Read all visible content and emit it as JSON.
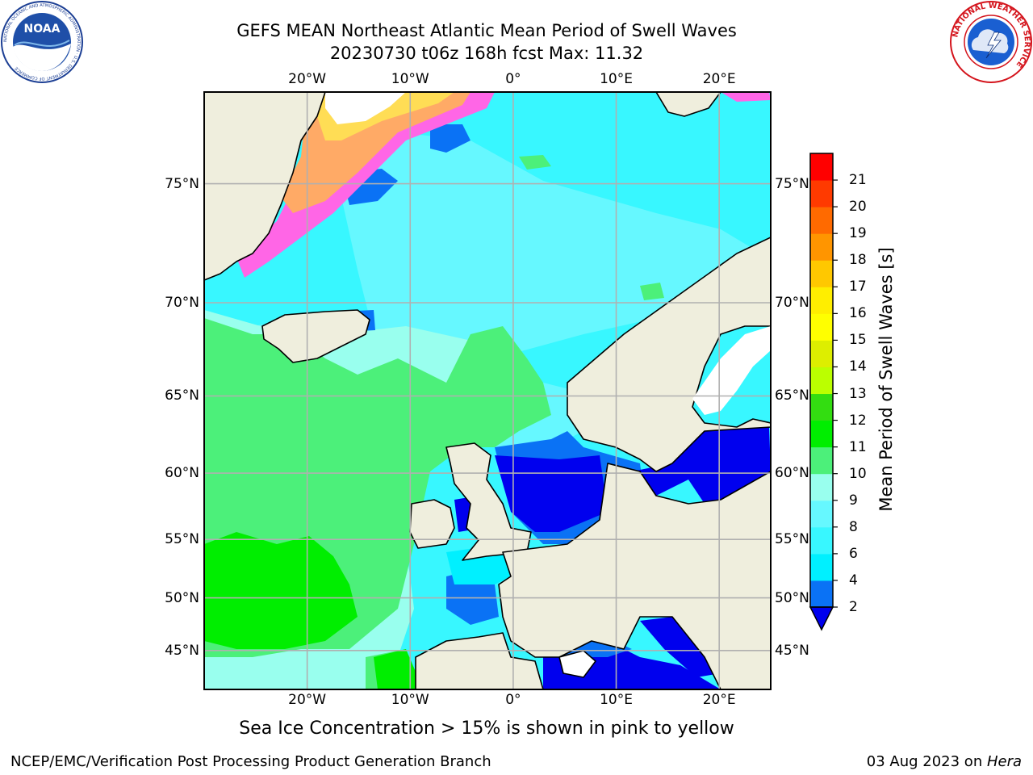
{
  "title": {
    "line1": "GEFS MEAN Northeast Atlantic Mean Period of Swell Waves",
    "line2": "20230730 t06z 168h fcst   Max: 11.32"
  },
  "map": {
    "lon_range": [
      -30,
      25
    ],
    "lat_range": [
      41,
      78
    ],
    "lon_ticks": [
      {
        "value": -20,
        "label": "20°W"
      },
      {
        "value": -10,
        "label": "10°W"
      },
      {
        "value": 0,
        "label": "0°"
      },
      {
        "value": 10,
        "label": "10°E"
      },
      {
        "value": 20,
        "label": "20°E"
      }
    ],
    "lat_ticks": [
      {
        "value": 75,
        "label": "75°N"
      },
      {
        "value": 70,
        "label": "70°N"
      },
      {
        "value": 65,
        "label": "65°N"
      },
      {
        "value": 60,
        "label": "60°N"
      },
      {
        "value": 55,
        "label": "55°N"
      },
      {
        "value": 50,
        "label": "50°N"
      },
      {
        "value": 45,
        "label": "45°N"
      }
    ],
    "grid": true,
    "land_color": "#efeedd",
    "ocean_base_color": "#38f7ff"
  },
  "colorbar": {
    "label": "Mean Period of Swell Waves [s]",
    "levels": [
      2,
      3,
      4,
      5,
      6,
      7,
      8,
      9,
      10,
      11,
      12,
      13,
      14,
      15,
      16,
      17,
      18,
      19,
      20,
      21
    ],
    "tick_labels": [
      "2",
      "4",
      "6",
      "8",
      "9",
      "10",
      "11",
      "12",
      "13",
      "14",
      "15",
      "16",
      "17",
      "18",
      "19",
      "20",
      "21"
    ],
    "colors": [
      "#0a72f5",
      "#00f0ff",
      "#38f7ff",
      "#66f8ff",
      "#99ffee",
      "#4cf07a",
      "#00ee00",
      "#33dd11",
      "#bbff00",
      "#ddee00",
      "#ffff00",
      "#ffee00",
      "#ffc800",
      "#ff9500",
      "#ff6a00",
      "#ff3a00",
      "#ff0000"
    ],
    "under_color": "#0000ee"
  },
  "subtitle": "Sea Ice Concentration > 15% is shown in pink to yellow",
  "footer": {
    "left": "NCEP/EMC/Verification Post Processing Product Generation Branch",
    "right_date": "03 Aug 2023 on ",
    "right_host": "Hera"
  },
  "logos": {
    "noaa_text": "NOAA",
    "noaa_ring": "NATIONAL OCEANIC AND ATMOSPHERIC ADMINISTRATION · U.S. DEPARTMENT OF COMMERCE",
    "nws_ring": "NATIONAL WEATHER SERVICE"
  }
}
